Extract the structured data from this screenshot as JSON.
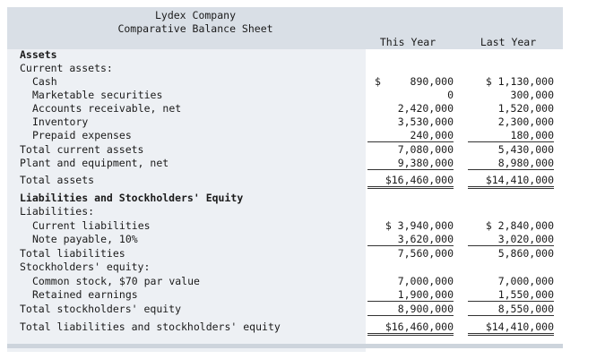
{
  "header": {
    "company": "Lydex Company",
    "title": "Comparative Balance Sheet",
    "col_this": "This Year",
    "col_last": "Last Year"
  },
  "rows": [
    {
      "label": "Assets"
    },
    {
      "label": "Current assets:"
    },
    {
      "label": "Cash",
      "this": "890,000",
      "last": "$ 1,130,000",
      "this_dollar": "$"
    },
    {
      "label": "Marketable securities",
      "this": "0",
      "last": "300,000"
    },
    {
      "label": "Accounts receivable, net",
      "this": "2,420,000",
      "last": "1,520,000"
    },
    {
      "label": "Inventory",
      "this": "3,530,000",
      "last": "2,300,000"
    },
    {
      "label": "Prepaid expenses",
      "this": "240,000",
      "last": "180,000"
    },
    {
      "label": "Total current assets",
      "this": "7,080,000",
      "last": "5,430,000"
    },
    {
      "label": "Plant and equipment, net",
      "this": "9,380,000",
      "last": "8,980,000"
    },
    {
      "label": "Total assets",
      "this": "$16,460,000",
      "last": "$14,410,000"
    },
    {
      "label": "Liabilities and Stockholders' Equity"
    },
    {
      "label": "Liabilities:"
    },
    {
      "label": "Current liabilities",
      "this": "$ 3,940,000",
      "last": "$ 2,840,000"
    },
    {
      "label": "Note payable, 10%",
      "this": "3,620,000",
      "last": "3,020,000"
    },
    {
      "label": "Total liabilities",
      "this": "7,560,000",
      "last": "5,860,000"
    },
    {
      "label": "Stockholders' equity:"
    },
    {
      "label": "Common stock, $70 par value",
      "this": "7,000,000",
      "last": "7,000,000"
    },
    {
      "label": "Retained earnings",
      "this": "1,900,000",
      "last": "1,550,000"
    },
    {
      "label": "Total stockholders' equity",
      "this": "8,900,000",
      "last": "8,550,000"
    },
    {
      "label": "Total liabilities and stockholders' equity",
      "this": "$16,460,000",
      "last": "$14,410,000"
    }
  ]
}
